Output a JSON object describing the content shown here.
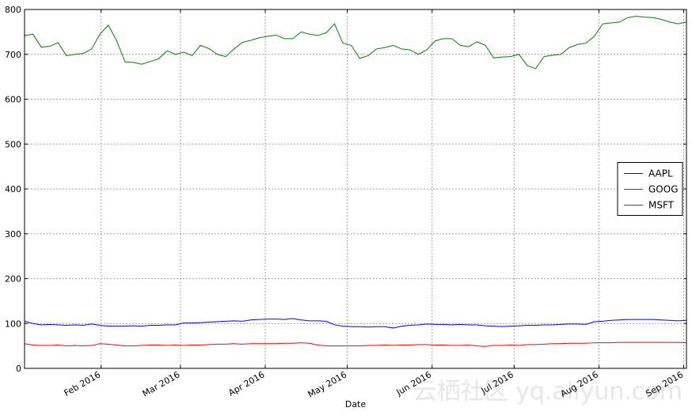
{
  "chart_data": {
    "type": "line",
    "x_label": "Date",
    "xlim": [
      "2016-01-04",
      "2016-09-02"
    ],
    "xticks": [
      {
        "value": "2016-02-01",
        "label": "Feb 2016"
      },
      {
        "value": "2016-03-01",
        "label": "Mar 2016"
      },
      {
        "value": "2016-04-01",
        "label": "Apr 2016"
      },
      {
        "value": "2016-05-01",
        "label": "May 2016"
      },
      {
        "value": "2016-06-01",
        "label": "Jun 2016"
      },
      {
        "value": "2016-07-01",
        "label": "Jul 2016"
      },
      {
        "value": "2016-08-01",
        "label": "Aug 2016"
      },
      {
        "value": "2016-09-01",
        "label": "Sep 2016"
      }
    ],
    "ylim": [
      0,
      800
    ],
    "yticks": [
      0,
      100,
      200,
      300,
      400,
      500,
      600,
      700,
      800
    ],
    "grid": true,
    "legend": "right",
    "series": [
      {
        "name": "AAPL",
        "color": "#0000ff",
        "values": [
          105,
          100,
          97,
          98,
          97,
          96,
          97,
          96,
          99,
          96,
          94,
          94,
          94,
          95,
          94,
          96,
          96,
          97,
          97,
          101,
          101,
          102,
          103,
          104,
          105,
          106,
          105,
          108,
          109,
          110,
          110,
          109,
          111,
          108,
          106,
          106,
          105,
          97,
          94,
          93,
          93,
          92,
          93,
          93,
          90,
          94,
          96,
          97,
          99,
          98,
          98,
          97,
          98,
          97,
          97,
          95,
          94,
          93,
          94,
          95,
          96,
          96,
          97,
          97,
          98,
          99,
          99,
          98,
          104,
          105,
          107,
          108,
          109,
          109,
          109,
          109,
          108,
          107,
          106,
          107
        ]
      },
      {
        "name": "GOOG",
        "color": "#008000",
        "values": [
          742,
          745,
          716,
          718,
          726,
          697,
          700,
          702,
          712,
          745,
          765,
          730,
          683,
          682,
          678,
          684,
          690,
          708,
          700,
          705,
          697,
          720,
          713,
          700,
          695,
          712,
          727,
          731,
          737,
          740,
          743,
          735,
          735,
          750,
          745,
          742,
          748,
          768,
          725,
          720,
          691,
          697,
          712,
          715,
          720,
          712,
          710,
          700,
          710,
          730,
          735,
          735,
          720,
          717,
          728,
          720,
          692,
          694,
          695,
          700,
          675,
          668,
          695,
          698,
          700,
          715,
          722,
          725,
          740,
          768,
          770,
          772,
          782,
          785,
          783,
          782,
          778,
          772,
          768,
          772
        ]
      },
      {
        "name": "MSFT",
        "color": "#ff0000",
        "values": [
          55,
          52,
          51,
          51,
          52,
          50,
          51,
          50,
          51,
          55,
          54,
          52,
          50,
          50,
          51,
          52,
          52,
          51,
          52,
          51,
          52,
          52,
          53,
          54,
          54,
          55,
          54,
          55,
          55,
          55,
          55,
          56,
          56,
          57,
          56,
          52,
          50,
          50,
          50,
          50,
          50,
          51,
          51,
          52,
          51,
          52,
          52,
          53,
          53,
          52,
          52,
          51,
          51,
          52,
          50,
          49,
          51,
          51,
          52,
          51,
          53,
          53,
          54,
          55,
          55,
          56,
          56,
          56,
          57,
          57,
          57,
          58,
          58,
          58,
          58,
          58,
          58,
          58,
          58,
          57
        ]
      }
    ],
    "watermark": "云栖社区 yq.aliyun.com"
  }
}
